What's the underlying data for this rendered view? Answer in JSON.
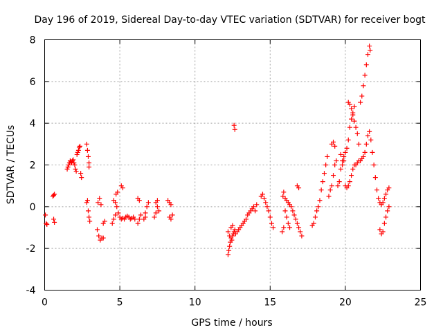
{
  "chart_data": {
    "type": "scatter",
    "title": "Day 196 of 2019, Sidereal Day-to-day VTEC variation (SDTVAR) for receiver bogt",
    "xlabel": "GPS time / hours",
    "ylabel": "SDTVAR / TECUs",
    "xlim": [
      0,
      25
    ],
    "ylim": [
      -4,
      8
    ],
    "xticks": [
      0,
      5,
      10,
      15,
      20,
      25
    ],
    "yticks": [
      -4,
      -2,
      0,
      2,
      4,
      6,
      8
    ],
    "grid": true,
    "marker": "plus",
    "color": "#ff0000",
    "series": [
      {
        "name": "SDTVAR",
        "points": [
          [
            0.05,
            -0.4
          ],
          [
            0.1,
            -0.8
          ],
          [
            0.15,
            -0.85
          ],
          [
            0.55,
            0.5
          ],
          [
            0.6,
            0.55
          ],
          [
            0.65,
            0.6
          ],
          [
            0.6,
            -0.6
          ],
          [
            0.65,
            -0.75
          ],
          [
            1.5,
            1.8
          ],
          [
            1.55,
            1.9
          ],
          [
            1.6,
            2.0
          ],
          [
            1.65,
            2.1
          ],
          [
            1.7,
            2.2
          ],
          [
            1.75,
            2.15
          ],
          [
            1.8,
            2.1
          ],
          [
            1.85,
            2.2
          ],
          [
            1.9,
            2.25
          ],
          [
            1.95,
            2.1
          ],
          [
            2.0,
            2.0
          ],
          [
            2.05,
            1.8
          ],
          [
            2.1,
            1.7
          ],
          [
            2.15,
            2.5
          ],
          [
            2.2,
            2.6
          ],
          [
            2.25,
            2.7
          ],
          [
            2.3,
            2.85
          ],
          [
            2.35,
            2.9
          ],
          [
            2.4,
            1.6
          ],
          [
            2.45,
            1.4
          ],
          [
            2.8,
            3.0
          ],
          [
            2.85,
            2.7
          ],
          [
            2.9,
            2.4
          ],
          [
            2.95,
            2.1
          ],
          [
            2.95,
            1.9
          ],
          [
            2.8,
            0.2
          ],
          [
            2.85,
            0.3
          ],
          [
            2.9,
            -0.2
          ],
          [
            2.95,
            -0.5
          ],
          [
            3.0,
            -0.7
          ],
          [
            3.5,
            -1.1
          ],
          [
            3.6,
            -1.4
          ],
          [
            3.7,
            -1.6
          ],
          [
            3.8,
            -1.5
          ],
          [
            3.9,
            -1.5
          ],
          [
            3.55,
            0.2
          ],
          [
            3.65,
            0.4
          ],
          [
            3.75,
            0.1
          ],
          [
            3.9,
            -0.8
          ],
          [
            4.0,
            -0.7
          ],
          [
            4.6,
            0.3
          ],
          [
            4.7,
            0.2
          ],
          [
            4.8,
            0.0
          ],
          [
            4.5,
            -0.8
          ],
          [
            4.6,
            -0.6
          ],
          [
            4.7,
            -0.4
          ],
          [
            4.75,
            0.6
          ],
          [
            4.85,
            0.7
          ],
          [
            4.9,
            -0.3
          ],
          [
            5.0,
            -0.5
          ],
          [
            5.1,
            -0.6
          ],
          [
            5.2,
            -0.55
          ],
          [
            5.3,
            -0.6
          ],
          [
            5.4,
            -0.5
          ],
          [
            5.5,
            -0.45
          ],
          [
            5.6,
            -0.5
          ],
          [
            5.7,
            -0.6
          ],
          [
            5.8,
            -0.55
          ],
          [
            5.9,
            -0.5
          ],
          [
            6.0,
            -0.6
          ],
          [
            5.1,
            1.0
          ],
          [
            5.2,
            0.9
          ],
          [
            6.2,
            0.4
          ],
          [
            6.3,
            0.3
          ],
          [
            6.2,
            -0.8
          ],
          [
            6.3,
            -0.6
          ],
          [
            6.4,
            -0.4
          ],
          [
            6.6,
            -0.6
          ],
          [
            6.7,
            -0.3
          ],
          [
            6.8,
            0.0
          ],
          [
            6.9,
            0.2
          ],
          [
            6.7,
            -0.5
          ],
          [
            7.3,
            -0.5
          ],
          [
            7.4,
            -0.3
          ],
          [
            7.5,
            0.0
          ],
          [
            7.5,
            0.3
          ],
          [
            7.4,
            0.2
          ],
          [
            7.6,
            -0.2
          ],
          [
            8.2,
            0.3
          ],
          [
            8.3,
            0.2
          ],
          [
            8.4,
            0.1
          ],
          [
            8.3,
            -0.5
          ],
          [
            8.4,
            -0.6
          ],
          [
            8.5,
            -0.4
          ],
          [
            12.2,
            -2.3
          ],
          [
            12.25,
            -2.1
          ],
          [
            12.3,
            -1.9
          ],
          [
            12.35,
            -1.7
          ],
          [
            12.4,
            -1.5
          ],
          [
            12.45,
            -1.6
          ],
          [
            12.5,
            -1.4
          ],
          [
            12.55,
            -1.3
          ],
          [
            12.6,
            -1.2
          ],
          [
            12.65,
            -1.1
          ],
          [
            12.7,
            -1.3
          ],
          [
            12.8,
            -1.2
          ],
          [
            12.9,
            -1.1
          ],
          [
            13.0,
            -1.0
          ],
          [
            13.1,
            -0.9
          ],
          [
            13.2,
            -0.8
          ],
          [
            13.3,
            -0.7
          ],
          [
            13.4,
            -0.6
          ],
          [
            13.5,
            -0.4
          ],
          [
            13.6,
            -0.3
          ],
          [
            13.7,
            -0.2
          ],
          [
            13.8,
            -0.1
          ],
          [
            13.9,
            0.0
          ],
          [
            14.0,
            -0.2
          ],
          [
            14.1,
            0.1
          ],
          [
            12.2,
            -1.2
          ],
          [
            12.3,
            -1.4
          ],
          [
            12.4,
            -1.0
          ],
          [
            12.5,
            -0.9
          ],
          [
            12.6,
            3.9
          ],
          [
            12.65,
            3.7
          ],
          [
            14.4,
            0.5
          ],
          [
            14.5,
            0.6
          ],
          [
            14.6,
            0.4
          ],
          [
            14.7,
            0.2
          ],
          [
            14.8,
            0.0
          ],
          [
            14.9,
            -0.2
          ],
          [
            15.0,
            -0.5
          ],
          [
            15.1,
            -0.8
          ],
          [
            15.2,
            -1.0
          ],
          [
            15.8,
            -1.2
          ],
          [
            15.9,
            -1.0
          ],
          [
            15.85,
            0.5
          ],
          [
            15.9,
            0.7
          ],
          [
            16.0,
            0.4
          ],
          [
            16.1,
            0.3
          ],
          [
            16.2,
            0.2
          ],
          [
            16.3,
            0.1
          ],
          [
            16.4,
            0.0
          ],
          [
            16.5,
            -0.2
          ],
          [
            16.6,
            -0.4
          ],
          [
            16.7,
            -0.6
          ],
          [
            16.8,
            -0.8
          ],
          [
            16.9,
            -1.0
          ],
          [
            17.0,
            -1.2
          ],
          [
            17.1,
            -1.4
          ],
          [
            16.0,
            -0.2
          ],
          [
            16.1,
            -0.5
          ],
          [
            16.2,
            -0.8
          ],
          [
            16.3,
            -1.0
          ],
          [
            16.8,
            1.0
          ],
          [
            16.9,
            0.9
          ],
          [
            17.8,
            -0.9
          ],
          [
            17.9,
            -0.8
          ],
          [
            18.0,
            -0.5
          ],
          [
            18.1,
            -0.2
          ],
          [
            18.2,
            0.0
          ],
          [
            18.3,
            0.3
          ],
          [
            18.4,
            0.8
          ],
          [
            18.5,
            1.2
          ],
          [
            18.6,
            1.6
          ],
          [
            18.7,
            2.0
          ],
          [
            18.8,
            2.4
          ],
          [
            18.9,
            0.5
          ],
          [
            19.0,
            0.8
          ],
          [
            19.1,
            1.0
          ],
          [
            19.2,
            1.5
          ],
          [
            19.3,
            2.0
          ],
          [
            19.4,
            2.2
          ],
          [
            19.1,
            3.0
          ],
          [
            19.2,
            3.1
          ],
          [
            19.3,
            2.9
          ],
          [
            19.5,
            1.0
          ],
          [
            19.6,
            1.2
          ],
          [
            19.7,
            1.8
          ],
          [
            19.8,
            2.0
          ],
          [
            19.9,
            2.2
          ],
          [
            19.7,
            2.5
          ],
          [
            19.8,
            2.2
          ],
          [
            19.9,
            2.4
          ],
          [
            20.0,
            2.6
          ],
          [
            20.1,
            2.8
          ],
          [
            20.2,
            3.2
          ],
          [
            20.3,
            3.8
          ],
          [
            20.4,
            4.2
          ],
          [
            20.5,
            4.5
          ],
          [
            20.6,
            4.8
          ],
          [
            20.2,
            5.0
          ],
          [
            20.3,
            4.9
          ],
          [
            20.4,
            4.7
          ],
          [
            20.5,
            4.4
          ],
          [
            20.6,
            4.1
          ],
          [
            20.7,
            3.8
          ],
          [
            20.8,
            3.5
          ],
          [
            20.9,
            3.0
          ],
          [
            20.0,
            1.0
          ],
          [
            20.1,
            0.9
          ],
          [
            20.2,
            1.0
          ],
          [
            20.3,
            1.2
          ],
          [
            20.4,
            1.5
          ],
          [
            20.5,
            1.8
          ],
          [
            20.6,
            2.0
          ],
          [
            20.7,
            2.0
          ],
          [
            20.8,
            2.1
          ],
          [
            20.9,
            2.2
          ],
          [
            21.0,
            5.0
          ],
          [
            21.1,
            5.3
          ],
          [
            21.2,
            5.8
          ],
          [
            21.3,
            6.3
          ],
          [
            21.4,
            6.8
          ],
          [
            21.5,
            7.3
          ],
          [
            21.6,
            7.7
          ],
          [
            21.65,
            7.5
          ],
          [
            21.0,
            2.2
          ],
          [
            21.1,
            2.3
          ],
          [
            21.2,
            2.4
          ],
          [
            21.3,
            2.6
          ],
          [
            21.4,
            3.0
          ],
          [
            21.5,
            3.4
          ],
          [
            21.6,
            3.6
          ],
          [
            21.7,
            3.2
          ],
          [
            21.8,
            2.6
          ],
          [
            21.9,
            2.0
          ],
          [
            22.0,
            1.4
          ],
          [
            22.1,
            0.8
          ],
          [
            22.2,
            0.4
          ],
          [
            22.3,
            0.2
          ],
          [
            22.4,
            0.1
          ],
          [
            22.5,
            0.2
          ],
          [
            22.6,
            0.4
          ],
          [
            22.7,
            0.6
          ],
          [
            22.8,
            0.8
          ],
          [
            22.9,
            0.9
          ],
          [
            22.3,
            -1.1
          ],
          [
            22.4,
            -1.3
          ],
          [
            22.5,
            -1.2
          ],
          [
            22.6,
            -0.8
          ],
          [
            22.7,
            -0.5
          ],
          [
            22.8,
            -0.2
          ],
          [
            22.9,
            0.0
          ]
        ]
      }
    ]
  }
}
